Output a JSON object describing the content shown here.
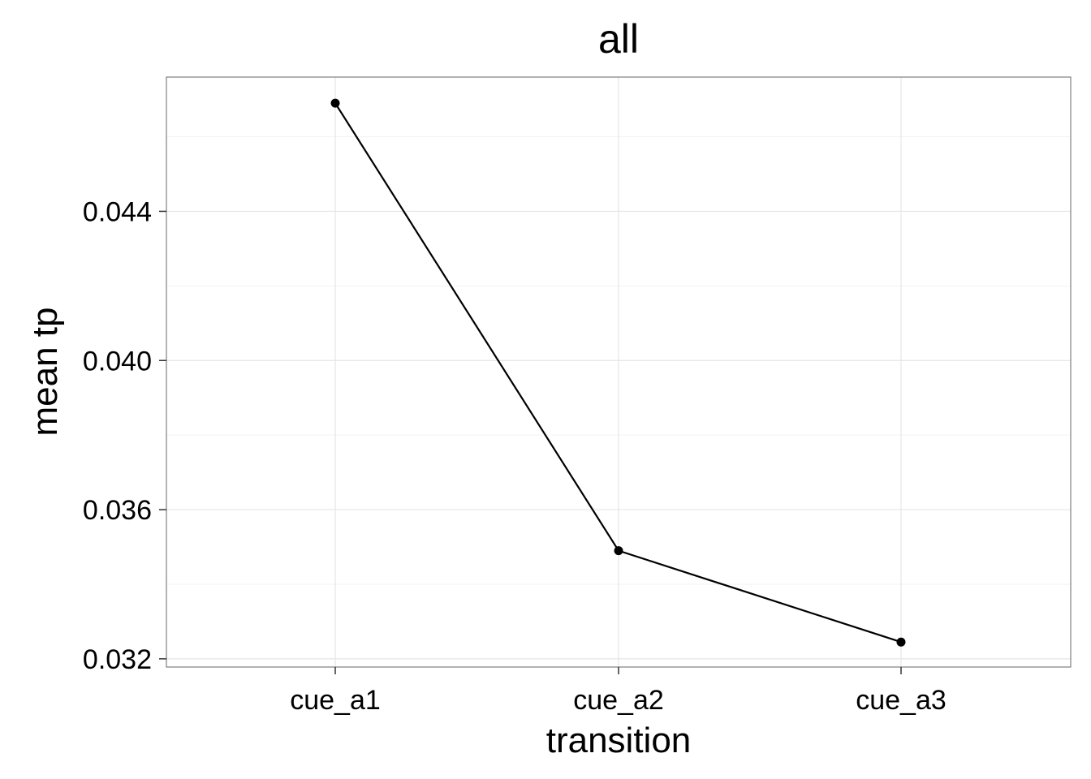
{
  "chart_data": {
    "type": "line",
    "title": "all",
    "xlabel": "transition",
    "ylabel": "mean tp",
    "categories": [
      "cue_a1",
      "cue_a2",
      "cue_a3"
    ],
    "values": [
      0.0469,
      0.0349,
      0.03245
    ],
    "ylim": [
      0.03178,
      0.0476
    ],
    "yticks": [
      0.032,
      0.036,
      0.04,
      0.044
    ],
    "ytick_labels": [
      "0.032",
      "0.036",
      "0.040",
      "0.044"
    ],
    "grid": true,
    "legend": "none",
    "colors": {
      "line": "#000000",
      "points": "#000000",
      "grid_major": "#e5e5e5",
      "grid_minor": "#f2f2f2",
      "panel_border": "#7f7f7f",
      "background": "#ffffff"
    }
  }
}
